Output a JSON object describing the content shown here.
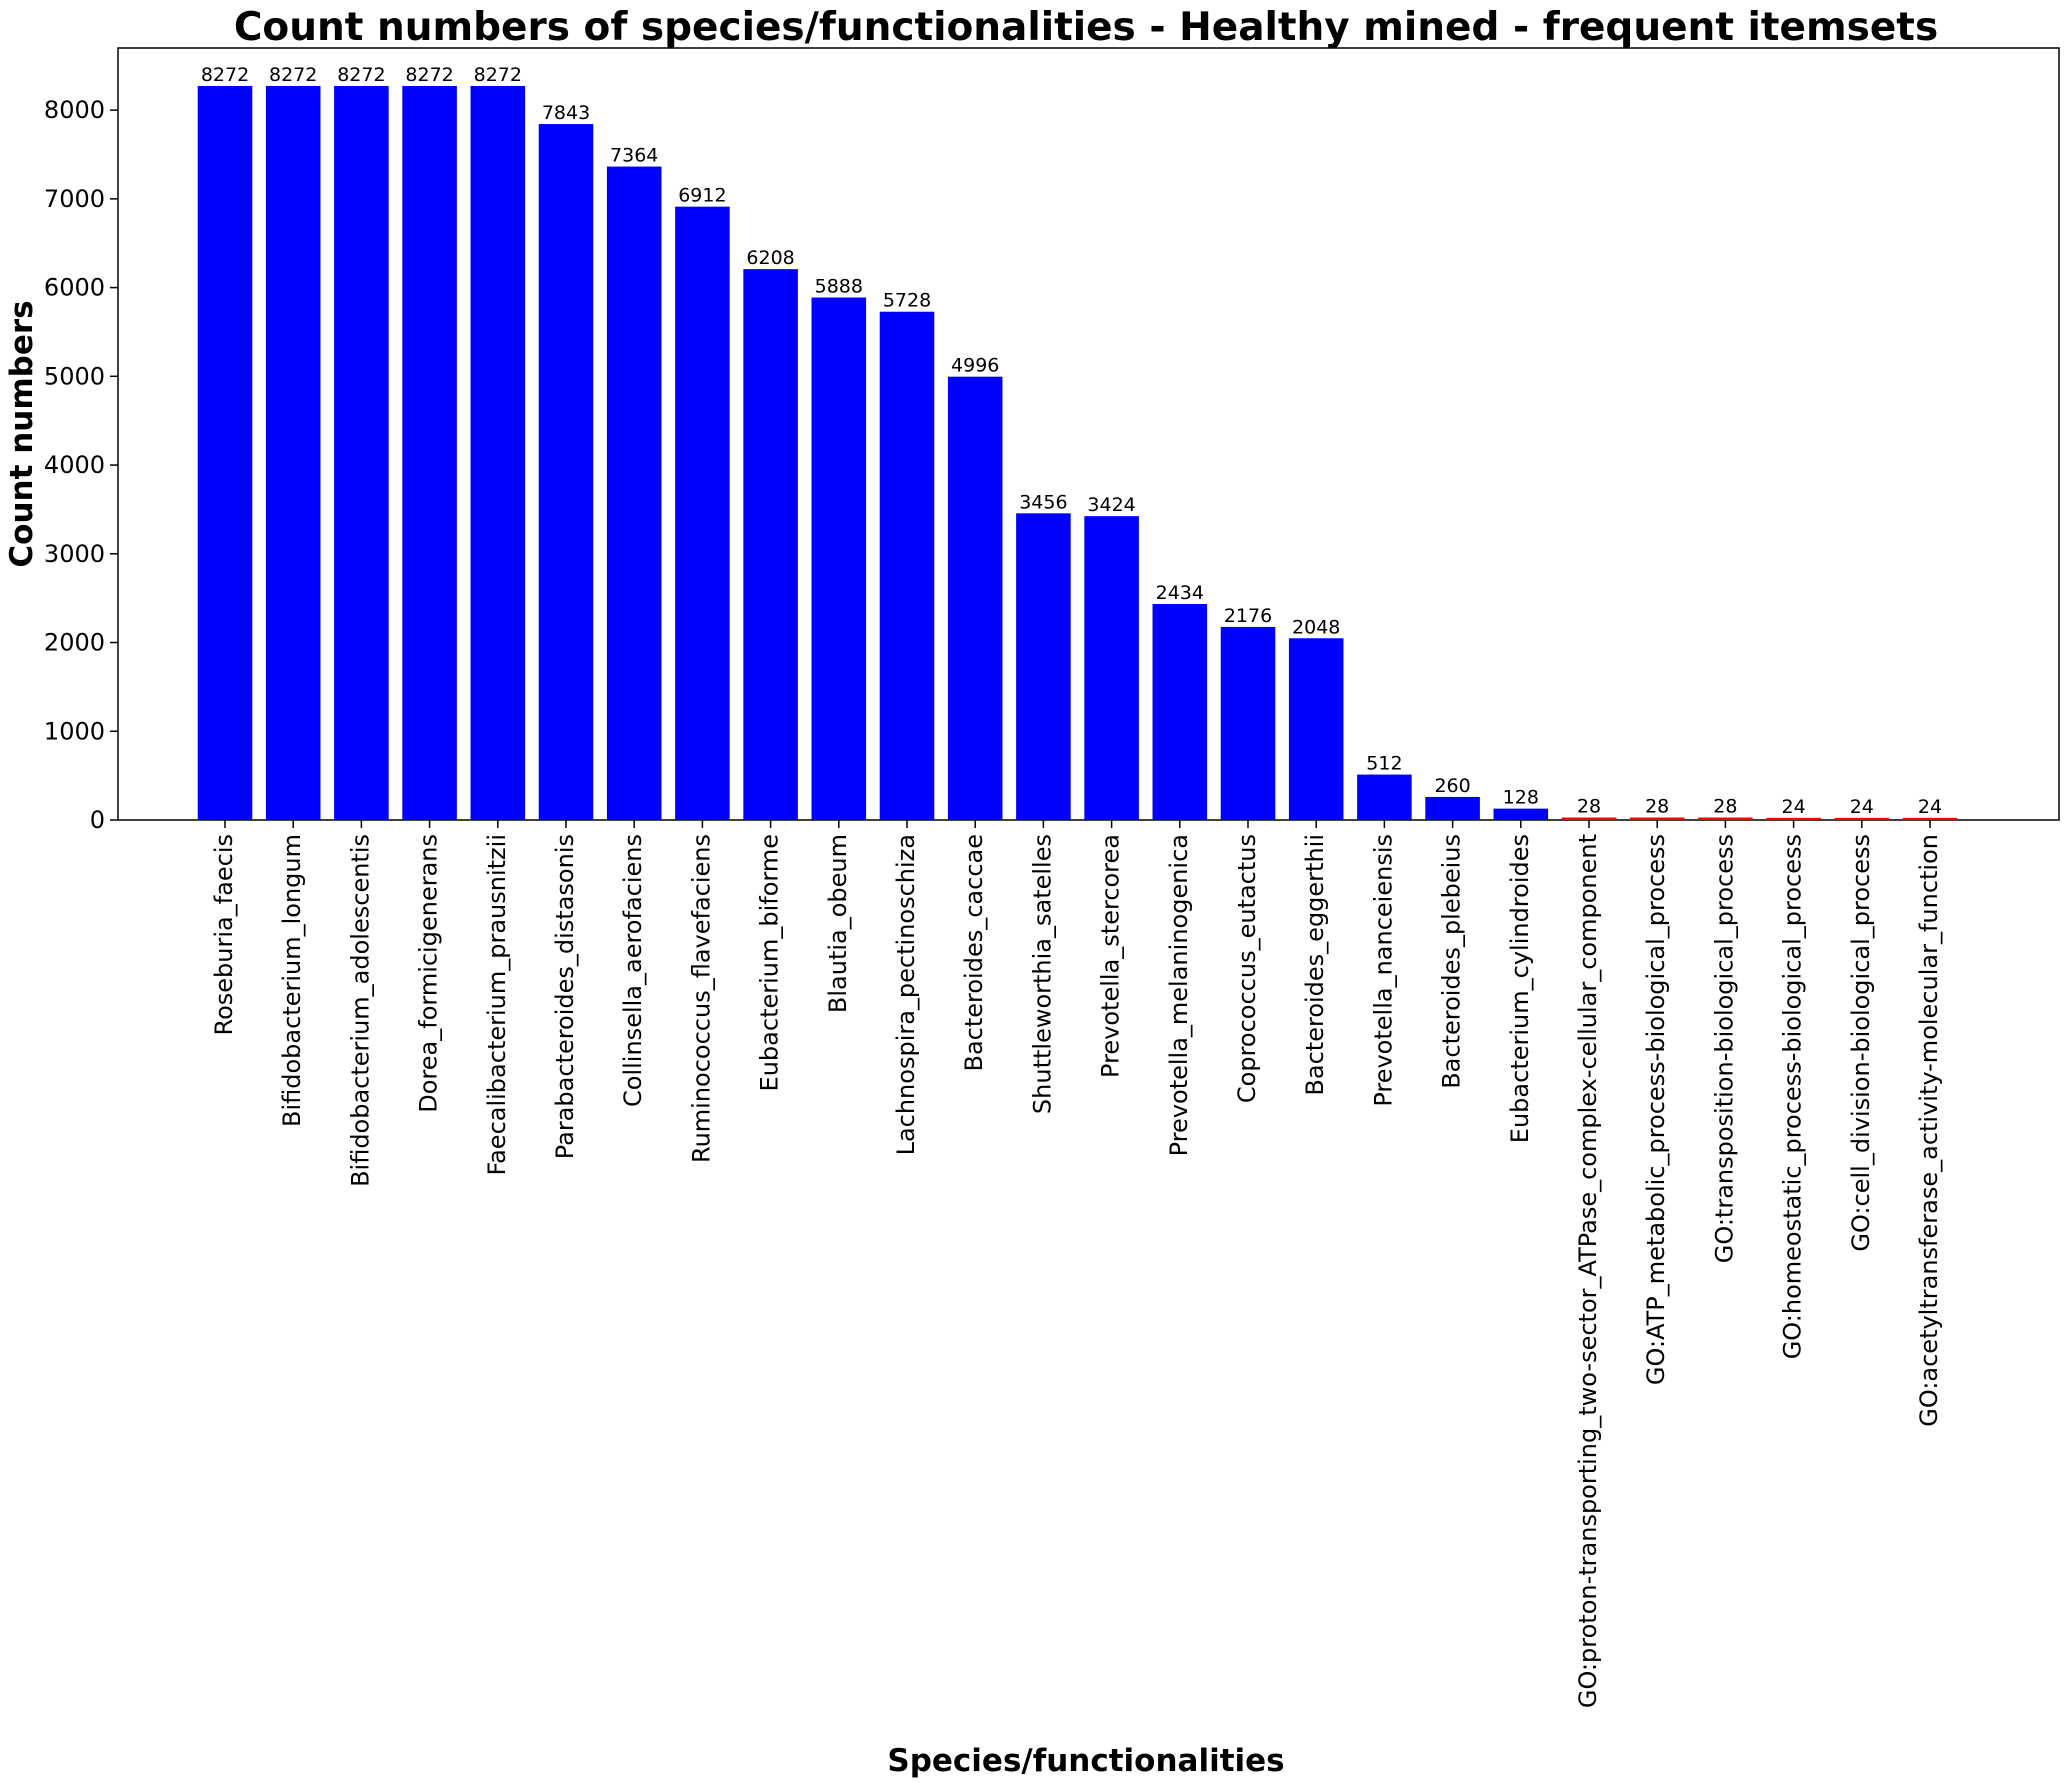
{
  "chart_data": {
    "type": "bar",
    "title": "Count numbers of species/functionalities - Healthy mined - frequent itemsets",
    "xlabel": "Species/functionalities",
    "ylabel": "Count numbers",
    "ylim": [
      0,
      8700
    ],
    "yticks": [
      0,
      1000,
      2000,
      3000,
      4000,
      5000,
      6000,
      7000,
      8000
    ],
    "grid": false,
    "legend": "none",
    "categories": [
      "Roseburia_faecis",
      "Bifidobacterium_longum",
      "Bifidobacterium_adolescentis",
      "Dorea_formicigenerans",
      "Faecalibacterium_prausnitzii",
      "Parabacteroides_distasonis",
      "Collinsella_aerofaciens",
      "Ruminococcus_flavefaciens",
      "Eubacterium_biforme",
      "Blautia_obeum",
      "Lachnospira_pectinoschiza",
      "Bacteroides_caccae",
      "Shuttleworthia_satelles",
      "Prevotella_stercorea",
      "Prevotella_melaninogenica",
      "Coprococcus_eutactus",
      "Bacteroides_eggerthii",
      "Prevotella_nanceiensis",
      "Bacteroides_plebeius",
      "Eubacterium_cylindroides",
      "GO:proton-transporting_two-sector_ATPase_complex-cellular_component",
      "GO:ATP_metabolic_process-biological_process",
      "GO:transposition-biological_process",
      "GO:homeostatic_process-biological_process",
      "GO:cell_division-biological_process",
      "GO:acetyltransferase_activity-molecular_function"
    ],
    "values": [
      8272,
      8272,
      8272,
      8272,
      8272,
      7843,
      7364,
      6912,
      6208,
      5888,
      5728,
      4996,
      3456,
      3424,
      2434,
      2176,
      2048,
      512,
      260,
      128,
      28,
      28,
      28,
      24,
      24,
      24
    ],
    "bar_colors": [
      "#0000ff",
      "#0000ff",
      "#0000ff",
      "#0000ff",
      "#0000ff",
      "#0000ff",
      "#0000ff",
      "#0000ff",
      "#0000ff",
      "#0000ff",
      "#0000ff",
      "#0000ff",
      "#0000ff",
      "#0000ff",
      "#0000ff",
      "#0000ff",
      "#0000ff",
      "#0000ff",
      "#0000ff",
      "#0000ff",
      "#ff0000",
      "#ff0000",
      "#ff0000",
      "#ff0000",
      "#ff0000",
      "#ff0000"
    ]
  }
}
